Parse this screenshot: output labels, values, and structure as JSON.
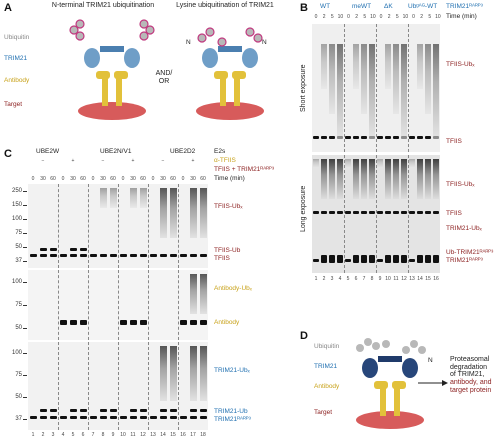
{
  "panel_a": {
    "label": "A",
    "left_title": "N-terminal TRIM21 ubiquitination",
    "right_title": "Lysine ubiquitination of TRIM21",
    "and_or": "AND/ OR",
    "legend": [
      "Ubiquitin",
      "TRIM21",
      "Antibody",
      "Target"
    ],
    "n_label": "N",
    "colors": {
      "ubiquitin": "#b8b8b8",
      "ubiquitin_outline": "#c0397f",
      "trim21": "#6f9ec7",
      "antibody": "#e2c13a",
      "target": "#d75b5b"
    }
  },
  "panel_b": {
    "label": "B",
    "groups": [
      "WT",
      "meWT",
      "ΔK",
      "Ubᵍᴬᴳ-WT"
    ],
    "construct_label": "TRIM21ᴿᴬᴿᴾ³",
    "times": [
      "0",
      "2",
      "5",
      "10",
      "0",
      "2",
      "5",
      "10",
      "0",
      "2",
      "5",
      "10",
      "0",
      "2",
      "5",
      "10"
    ],
    "time_label": "Time (min)",
    "short_exposure": "Short exposure",
    "long_exposure": "Long exposure",
    "band_labels": [
      "TFIIS-Ubₓ",
      "TFIIS",
      "TFIIS-Ubₓ",
      "TFIIS",
      "TRIM21-Ubₓ",
      "Ub-TRIM21ᴿᴬᴿᴾ³",
      "TRIM21ᴿᴬᴿᴾ³"
    ],
    "lanes": [
      "1",
      "2",
      "3",
      "4",
      "5",
      "6",
      "7",
      "8",
      "9",
      "10",
      "11",
      "12",
      "13",
      "14",
      "15",
      "16"
    ]
  },
  "panel_c": {
    "label": "C",
    "e2s": [
      "UBE2W",
      "UBE2N/V1",
      "UBE2D2"
    ],
    "e2s_label": "E2s",
    "anti_label": "α-TFIIS",
    "mix_label": "TFIIS + TRIM21ᴿᴬᴿᴾ³",
    "time_label": "Time (min)",
    "signs": [
      "−",
      "+",
      "−",
      "+",
      "−",
      "+"
    ],
    "times": [
      "0",
      "30",
      "60",
      "0",
      "30",
      "60",
      "0",
      "30",
      "60",
      "0",
      "30",
      "60",
      "0",
      "30",
      "60",
      "0",
      "30",
      "60"
    ],
    "mw_top": [
      "250",
      "150",
      "100",
      "75",
      "50",
      "37"
    ],
    "mw_mid": [
      "100",
      "75",
      "50"
    ],
    "mw_bot": [
      "100",
      "75",
      "50",
      "37"
    ],
    "labels_top": [
      "TFIIS-Ubₓ",
      "TFIIS-Ub",
      "TFIIS"
    ],
    "labels_mid": [
      "Antibody-Ubₓ",
      "Antibody"
    ],
    "labels_bot": [
      "TRIM21-Ubₓ",
      "TRIM21-Ub",
      "TRIM21ᴿᴬᴿᴾ³"
    ],
    "lanes": [
      "1",
      "2",
      "3",
      "4",
      "5",
      "6",
      "7",
      "8",
      "9",
      "10",
      "11",
      "12",
      "13",
      "14",
      "15",
      "16",
      "17",
      "18"
    ]
  },
  "panel_d": {
    "label": "D",
    "legend": [
      "Ubiquitin",
      "TRIM21",
      "Antibody",
      "Target"
    ],
    "n_label": "N",
    "arrow_text": [
      "Proteasomal",
      "degradation",
      "of TRIM21,",
      "antibody, and",
      "target protein"
    ]
  }
}
